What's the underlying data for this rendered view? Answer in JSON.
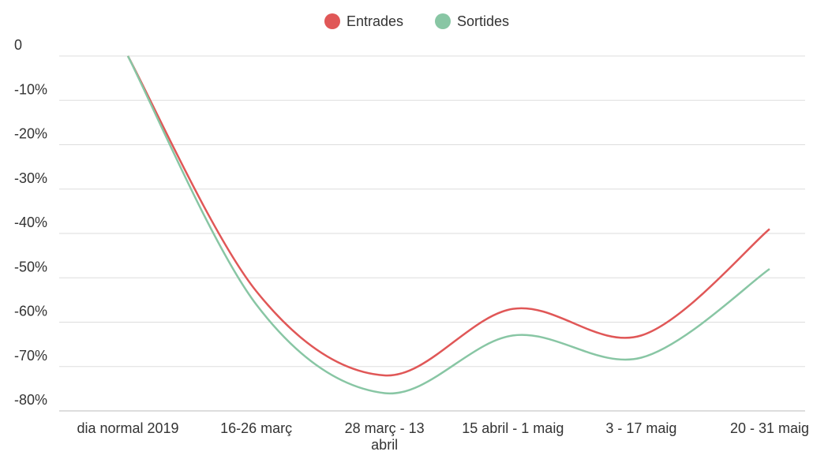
{
  "chart_data": {
    "type": "line",
    "categories": [
      "dia normal 2019",
      "16-26 març",
      "28 març - 13 abril",
      "15 abril - 1 maig",
      "3 - 17 maig",
      "20 - 31 maig"
    ],
    "series": [
      {
        "name": "Entrades",
        "color": "#e05757",
        "values": [
          0,
          -53,
          -72,
          -57,
          -63,
          -39
        ]
      },
      {
        "name": "Sortides",
        "color": "#88c6a4",
        "values": [
          0,
          -56,
          -76,
          -63,
          -68,
          -48
        ]
      }
    ],
    "ylim": [
      -80,
      0
    ],
    "yticks": [
      0,
      {
        "value": -10,
        "label": "-10%"
      },
      {
        "value": -20,
        "label": "-20%"
      },
      {
        "value": -30,
        "label": "-30%"
      },
      {
        "value": -40,
        "label": "-40%"
      },
      {
        "value": -50,
        "label": "-50%"
      },
      {
        "value": -60,
        "label": "-60%"
      },
      {
        "value": -70,
        "label": "-70%"
      },
      {
        "value": -80,
        "label": "-80%"
      }
    ],
    "grid": true,
    "legend": "top"
  }
}
